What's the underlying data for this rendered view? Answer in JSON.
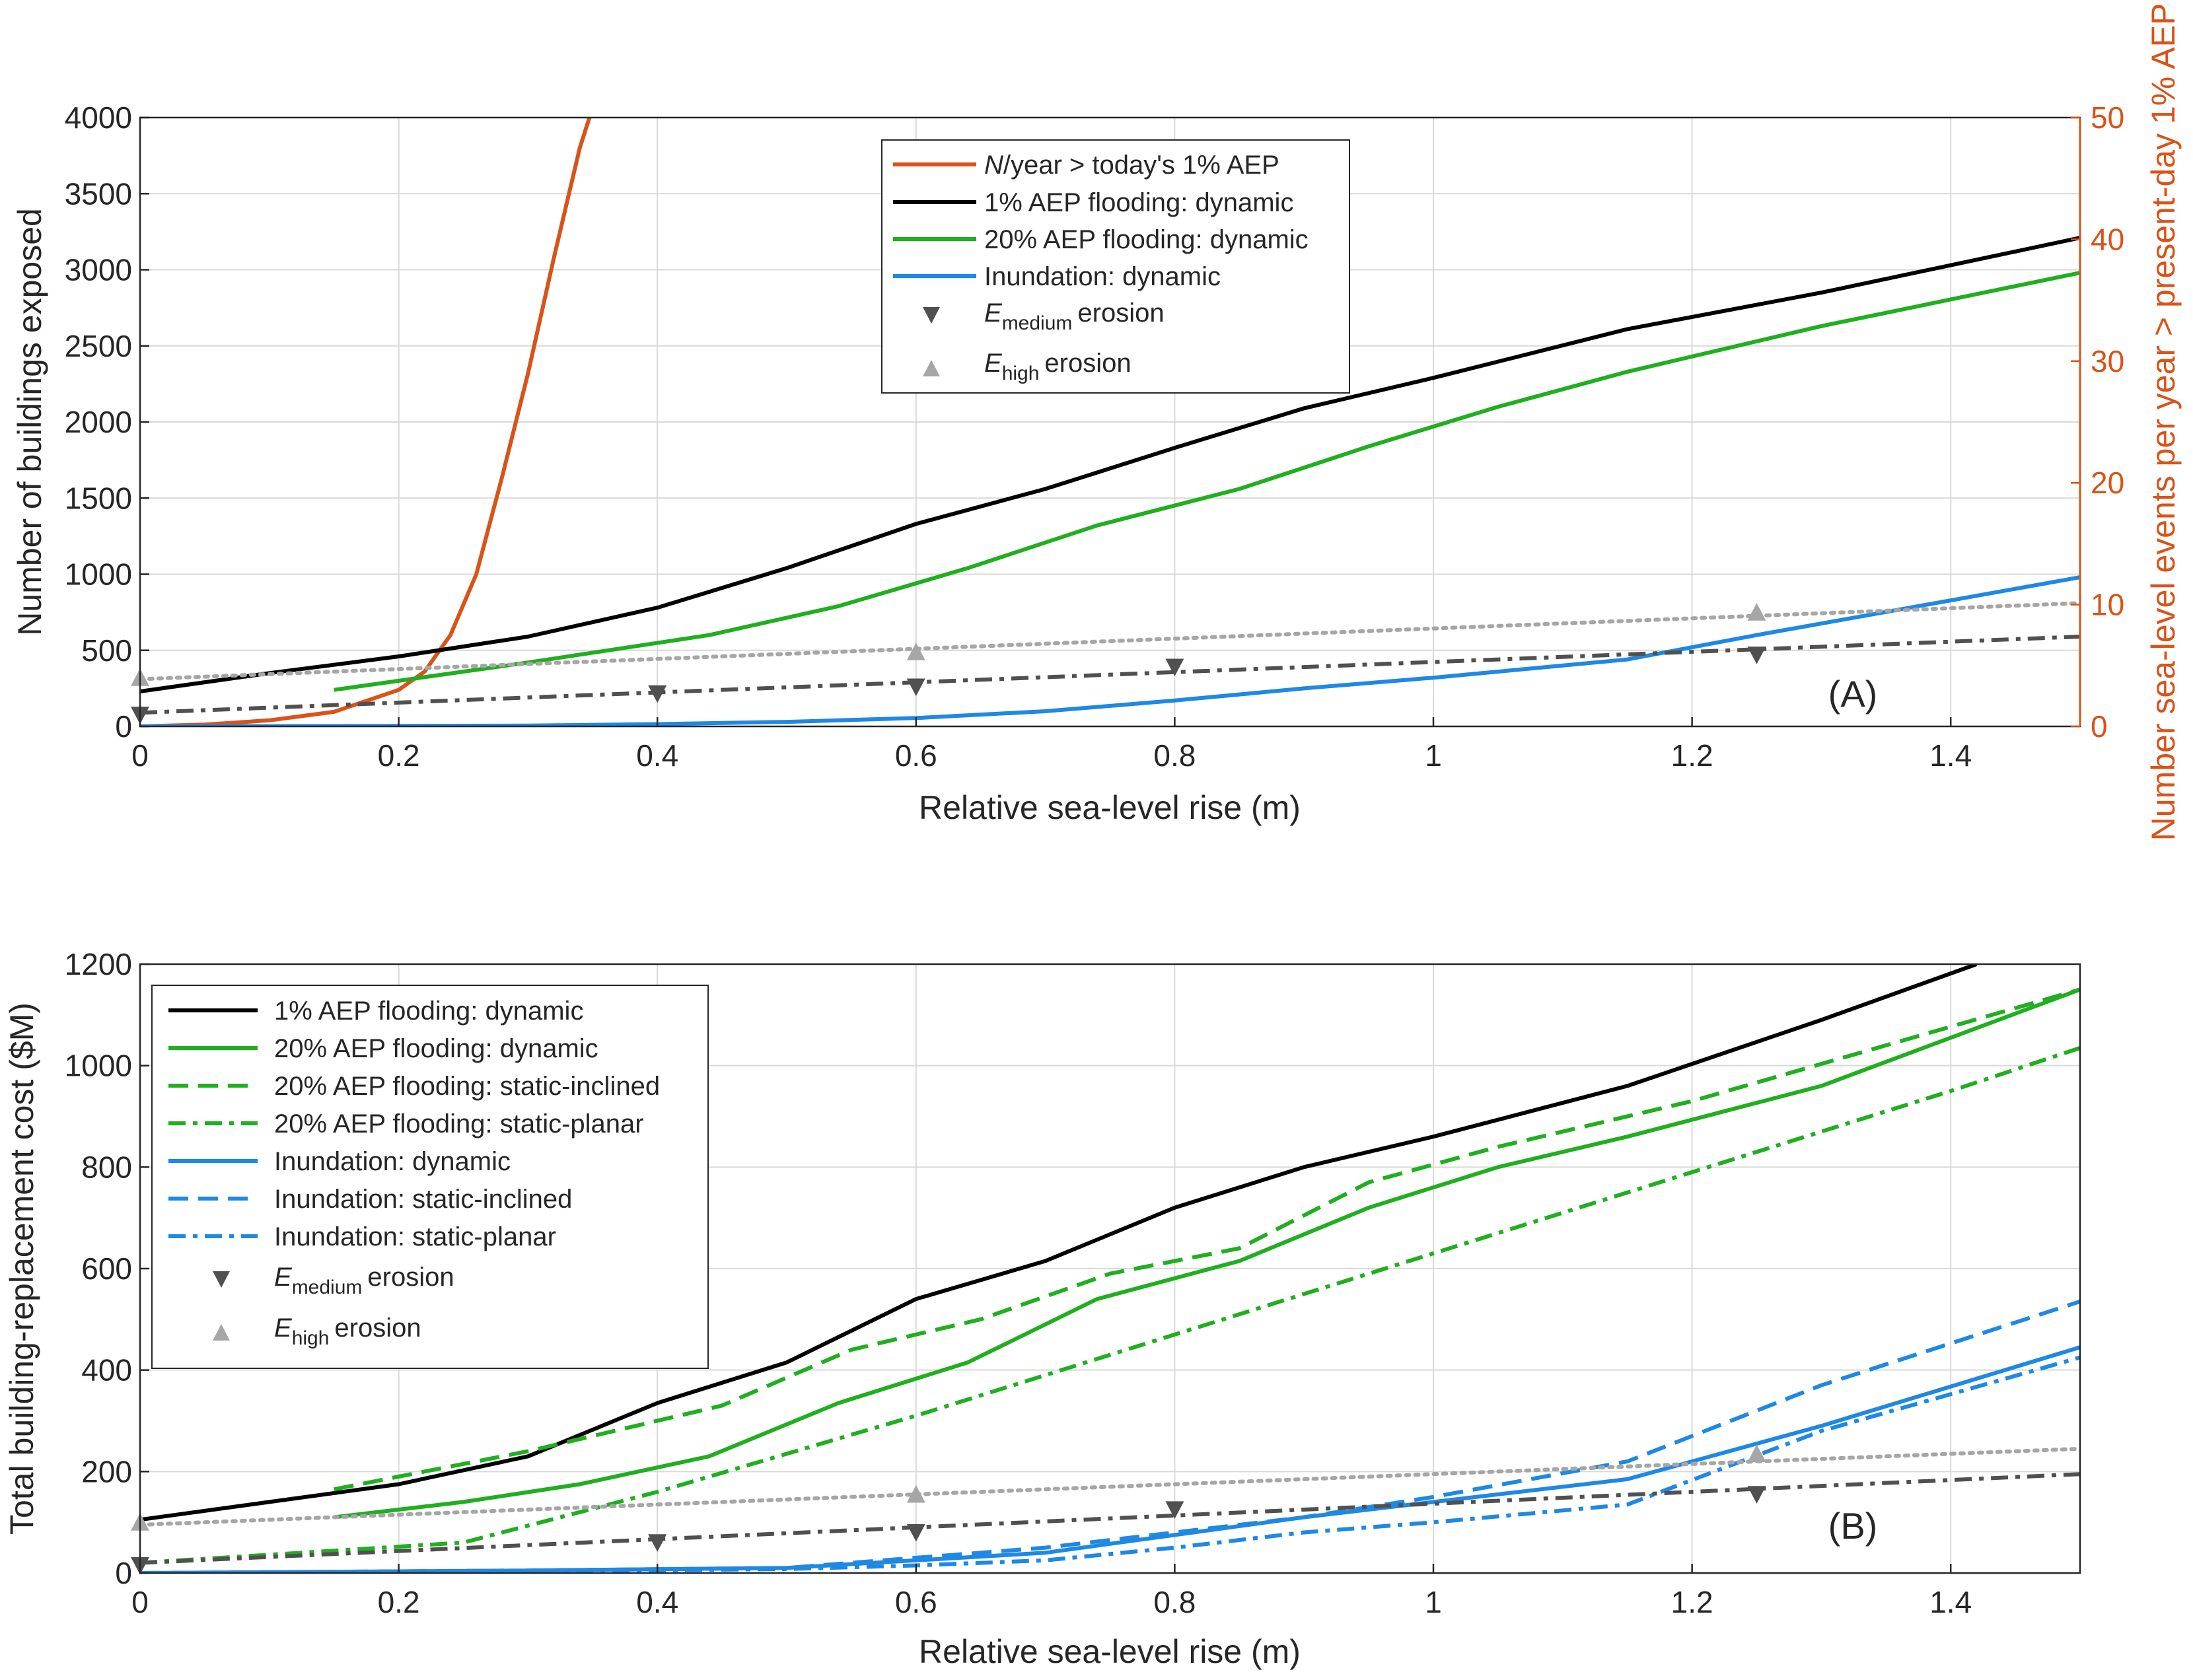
{
  "colors": {
    "orange": "#D95319",
    "black": "#000000",
    "green": "#1FAF1F",
    "blue": "#1E88E5",
    "darkgray": "#505050",
    "lightgray": "#A6A6A6"
  },
  "chart_data": [
    {
      "panel_label": "(A)",
      "type": "line",
      "xlabel": "Relative sea-level rise (m)",
      "ylabel": "Number of buildings exposed",
      "ylabel_right": "Number sea-level events per year > present-day 1% AEP",
      "xlim": [
        0,
        1.5
      ],
      "ylim": [
        0,
        4000
      ],
      "ylim_right": [
        0,
        50
      ],
      "xticks": [
        "0",
        "0.2",
        "0.4",
        "0.6",
        "0.8",
        "1",
        "1.2",
        "1.4"
      ],
      "yticks": [
        "0",
        "500",
        "1000",
        "1500",
        "2000",
        "2500",
        "3000",
        "3500",
        "4000"
      ],
      "yticks_right": [
        "0",
        "10",
        "20",
        "30",
        "40",
        "50"
      ],
      "legend": {
        "n_per_year_italic": "N",
        "n_per_year_rest": "/year > today's 1% AEP",
        "flood1": "1% AEP flooding: dynamic",
        "flood20": "20% AEP flooding: dynamic",
        "inundation": "Inundation: dynamic",
        "e_letter": "E",
        "medium_sub": "medium",
        "high_sub": "high",
        "erosion_word": "erosion"
      },
      "series": [
        {
          "name": "N/year > today's 1% AEP",
          "axis": "right",
          "color": "orange",
          "style": "solid",
          "x": [
            0.0,
            0.05,
            0.1,
            0.15,
            0.2,
            0.22,
            0.24,
            0.26,
            0.28,
            0.3,
            0.32,
            0.34,
            0.3475
          ],
          "y": [
            0,
            0.15,
            0.5,
            1.2,
            3.0,
            4.5,
            7.5,
            12.5,
            20.5,
            29.0,
            38.5,
            47.5,
            50
          ]
        },
        {
          "name": "1% AEP flooding: dynamic",
          "axis": "left",
          "color": "black",
          "style": "solid",
          "x": [
            0.0,
            0.1,
            0.2,
            0.3,
            0.4,
            0.5,
            0.6,
            0.7,
            0.8,
            0.9,
            1.0,
            1.15,
            1.3,
            1.5
          ],
          "y": [
            230,
            350,
            460,
            590,
            780,
            1040,
            1330,
            1560,
            1830,
            2090,
            2290,
            2610,
            2850,
            3210
          ]
        },
        {
          "name": "20% AEP flooding: dynamic",
          "axis": "left",
          "color": "green",
          "style": "solid",
          "x": [
            0.15,
            0.3,
            0.44,
            0.54,
            0.64,
            0.74,
            0.85,
            0.95,
            1.05,
            1.15,
            1.3,
            1.5
          ],
          "y": [
            240,
            420,
            600,
            790,
            1040,
            1320,
            1560,
            1840,
            2100,
            2330,
            2630,
            2980
          ]
        },
        {
          "name": "Inundation: dynamic",
          "axis": "left",
          "color": "blue",
          "style": "solid",
          "x": [
            0.0,
            0.3,
            0.4,
            0.5,
            0.6,
            0.7,
            0.8,
            0.9,
            1.0,
            1.15,
            1.25,
            1.5
          ],
          "y": [
            0,
            5,
            15,
            30,
            55,
            100,
            170,
            250,
            320,
            440,
            600,
            980
          ]
        },
        {
          "name": "Medium erosion trend",
          "axis": "left",
          "color": "darkgray",
          "style": "dashdot",
          "x": [
            0.0,
            1.5
          ],
          "y": [
            90,
            590
          ]
        },
        {
          "name": "High erosion trend",
          "axis": "left",
          "color": "lightgray",
          "style": "dotted",
          "x": [
            0.0,
            1.5
          ],
          "y": [
            310,
            810
          ]
        }
      ],
      "markers": [
        {
          "name": "E medium erosion",
          "shape": "down",
          "color": "darkgray",
          "x": [
            0.0,
            0.4,
            0.6,
            0.8,
            1.25
          ],
          "y": [
            75,
            215,
            260,
            390,
            470
          ]
        },
        {
          "name": "E high erosion",
          "shape": "up",
          "color": "lightgray",
          "x": [
            0.0,
            0.6,
            1.25
          ],
          "y": [
            320,
            490,
            750
          ]
        }
      ]
    },
    {
      "panel_label": "(B)",
      "type": "line",
      "xlabel": "Relative sea-level rise (m)",
      "ylabel": "Total building-replacement cost ($M)",
      "xlim": [
        0,
        1.5
      ],
      "ylim": [
        0,
        1200
      ],
      "xticks": [
        "0",
        "0.2",
        "0.4",
        "0.6",
        "0.8",
        "1",
        "1.2",
        "1.4"
      ],
      "yticks": [
        "0",
        "200",
        "400",
        "600",
        "800",
        "1000",
        "1200"
      ],
      "legend": {
        "flood1": "1% AEP flooding: dynamic",
        "flood20_dyn": "20% AEP flooding: dynamic",
        "flood20_inc": "20% AEP flooding: static-inclined",
        "flood20_pla": "20% AEP flooding: static-planar",
        "inun_dyn": "Inundation: dynamic",
        "inun_inc": "Inundation: static-inclined",
        "inun_pla": "Inundation: static-planar",
        "e_letter": "E",
        "medium_sub": "medium",
        "high_sub": "high",
        "erosion_word": "erosion"
      },
      "series": [
        {
          "name": "1% AEP flooding: dynamic",
          "color": "black",
          "style": "solid",
          "x": [
            0.0,
            0.1,
            0.2,
            0.3,
            0.4,
            0.5,
            0.6,
            0.7,
            0.8,
            0.9,
            1.0,
            1.15,
            1.3,
            1.42
          ],
          "y": [
            105,
            140,
            175,
            230,
            335,
            415,
            540,
            615,
            720,
            800,
            860,
            960,
            1090,
            1200
          ]
        },
        {
          "name": "20% AEP flooding: dynamic",
          "color": "green",
          "style": "solid",
          "x": [
            0.15,
            0.25,
            0.34,
            0.44,
            0.54,
            0.64,
            0.74,
            0.85,
            0.95,
            1.05,
            1.15,
            1.3,
            1.5
          ],
          "y": [
            110,
            140,
            175,
            230,
            335,
            415,
            540,
            615,
            720,
            800,
            860,
            960,
            1150
          ]
        },
        {
          "name": "20% AEP flooding: static-inclined",
          "color": "green",
          "style": "dashed",
          "x": [
            0.15,
            0.3,
            0.45,
            0.55,
            0.65,
            0.75,
            0.85,
            0.95,
            1.05,
            1.2,
            1.35,
            1.5
          ],
          "y": [
            165,
            240,
            330,
            440,
            500,
            590,
            640,
            770,
            840,
            930,
            1040,
            1150
          ]
        },
        {
          "name": "20% AEP flooding: static-planar",
          "color": "green",
          "style": "dashdot",
          "x": [
            0.0,
            0.25,
            0.4,
            0.6,
            0.8,
            1.0,
            1.2,
            1.4,
            1.5
          ],
          "y": [
            20,
            60,
            160,
            310,
            470,
            630,
            790,
            950,
            1035
          ]
        },
        {
          "name": "Inundation: dynamic",
          "color": "blue",
          "style": "solid",
          "x": [
            0.0,
            0.3,
            0.5,
            0.6,
            0.7,
            0.8,
            0.9,
            1.0,
            1.15,
            1.3,
            1.5
          ],
          "y": [
            0,
            5,
            10,
            25,
            40,
            75,
            110,
            140,
            185,
            290,
            445
          ]
        },
        {
          "name": "Inundation: static-inclined",
          "color": "blue",
          "style": "dashed",
          "x": [
            0.0,
            0.3,
            0.5,
            0.6,
            0.7,
            0.8,
            0.9,
            1.0,
            1.15,
            1.3,
            1.5
          ],
          "y": [
            0,
            5,
            10,
            30,
            50,
            80,
            110,
            150,
            220,
            370,
            535
          ]
        },
        {
          "name": "Inundation: static-planar",
          "color": "blue",
          "style": "dashdot",
          "x": [
            0.0,
            0.3,
            0.5,
            0.6,
            0.7,
            0.8,
            0.9,
            1.0,
            1.15,
            1.3,
            1.5
          ],
          "y": [
            0,
            3,
            8,
            15,
            25,
            50,
            80,
            100,
            135,
            280,
            425
          ]
        },
        {
          "name": "Medium erosion trend",
          "color": "darkgray",
          "style": "dashdot",
          "x": [
            0.0,
            1.5
          ],
          "y": [
            20,
            195
          ]
        },
        {
          "name": "High erosion trend",
          "color": "lightgray",
          "style": "dotted",
          "x": [
            0.0,
            1.5
          ],
          "y": [
            95,
            245
          ]
        }
      ],
      "markers": [
        {
          "name": "E medium erosion",
          "shape": "down",
          "color": "darkgray",
          "x": [
            0.0,
            0.4,
            0.6,
            0.8,
            1.25
          ],
          "y": [
            15,
            60,
            80,
            125,
            155
          ]
        },
        {
          "name": "E high erosion",
          "shape": "up",
          "color": "lightgray",
          "x": [
            0.0,
            0.6,
            1.25
          ],
          "y": [
            100,
            155,
            235
          ]
        }
      ]
    }
  ]
}
